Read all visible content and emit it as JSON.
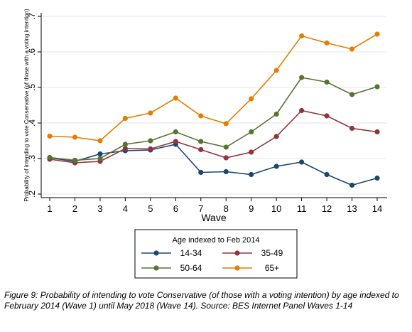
{
  "chart_data": {
    "type": "line",
    "ylabel": "Probability of intending to vote Conservative (of those with a voting intention)",
    "xlabel": "Wave",
    "x": [
      1,
      2,
      3,
      4,
      5,
      6,
      7,
      8,
      9,
      10,
      11,
      12,
      13,
      14
    ],
    "ylim": [
      0.19,
      0.71
    ],
    "yticks": [
      0.2,
      0.3,
      0.4,
      0.5,
      0.6,
      0.7
    ],
    "ytick_labels": [
      ".2",
      ".3",
      ".4",
      ".5",
      ".6",
      ".7"
    ],
    "grid": true,
    "legend_title": "Age indexed to Feb 2014",
    "legend_position": "bottom",
    "series": [
      {
        "name": "14-34",
        "color": "#1a476f",
        "values": [
          0.302,
          0.292,
          0.313,
          0.322,
          0.324,
          0.34,
          0.261,
          0.263,
          0.255,
          0.278,
          0.29,
          0.255,
          0.225,
          0.245
        ]
      },
      {
        "name": "35-49",
        "color": "#90353b",
        "values": [
          0.298,
          0.288,
          0.292,
          0.328,
          0.327,
          0.348,
          0.325,
          0.302,
          0.318,
          0.362,
          0.435,
          0.42,
          0.385,
          0.375
        ]
      },
      {
        "name": "50-64",
        "color": "#55752f",
        "values": [
          0.303,
          0.295,
          0.3,
          0.34,
          0.35,
          0.375,
          0.348,
          0.332,
          0.375,
          0.425,
          0.528,
          0.515,
          0.48,
          0.502
        ]
      },
      {
        "name": "65+",
        "color": "#e37e00",
        "values": [
          0.363,
          0.36,
          0.35,
          0.413,
          0.428,
          0.47,
          0.42,
          0.398,
          0.468,
          0.548,
          0.645,
          0.625,
          0.608,
          0.65
        ]
      }
    ]
  },
  "caption": "Figure 9: Probability of intending to vote Conservative (of those with a voting intention) by age indexed to February 2014 (Wave 1) until May 2018 (Wave 14). Source: BES Internet Panel Waves 1-14"
}
